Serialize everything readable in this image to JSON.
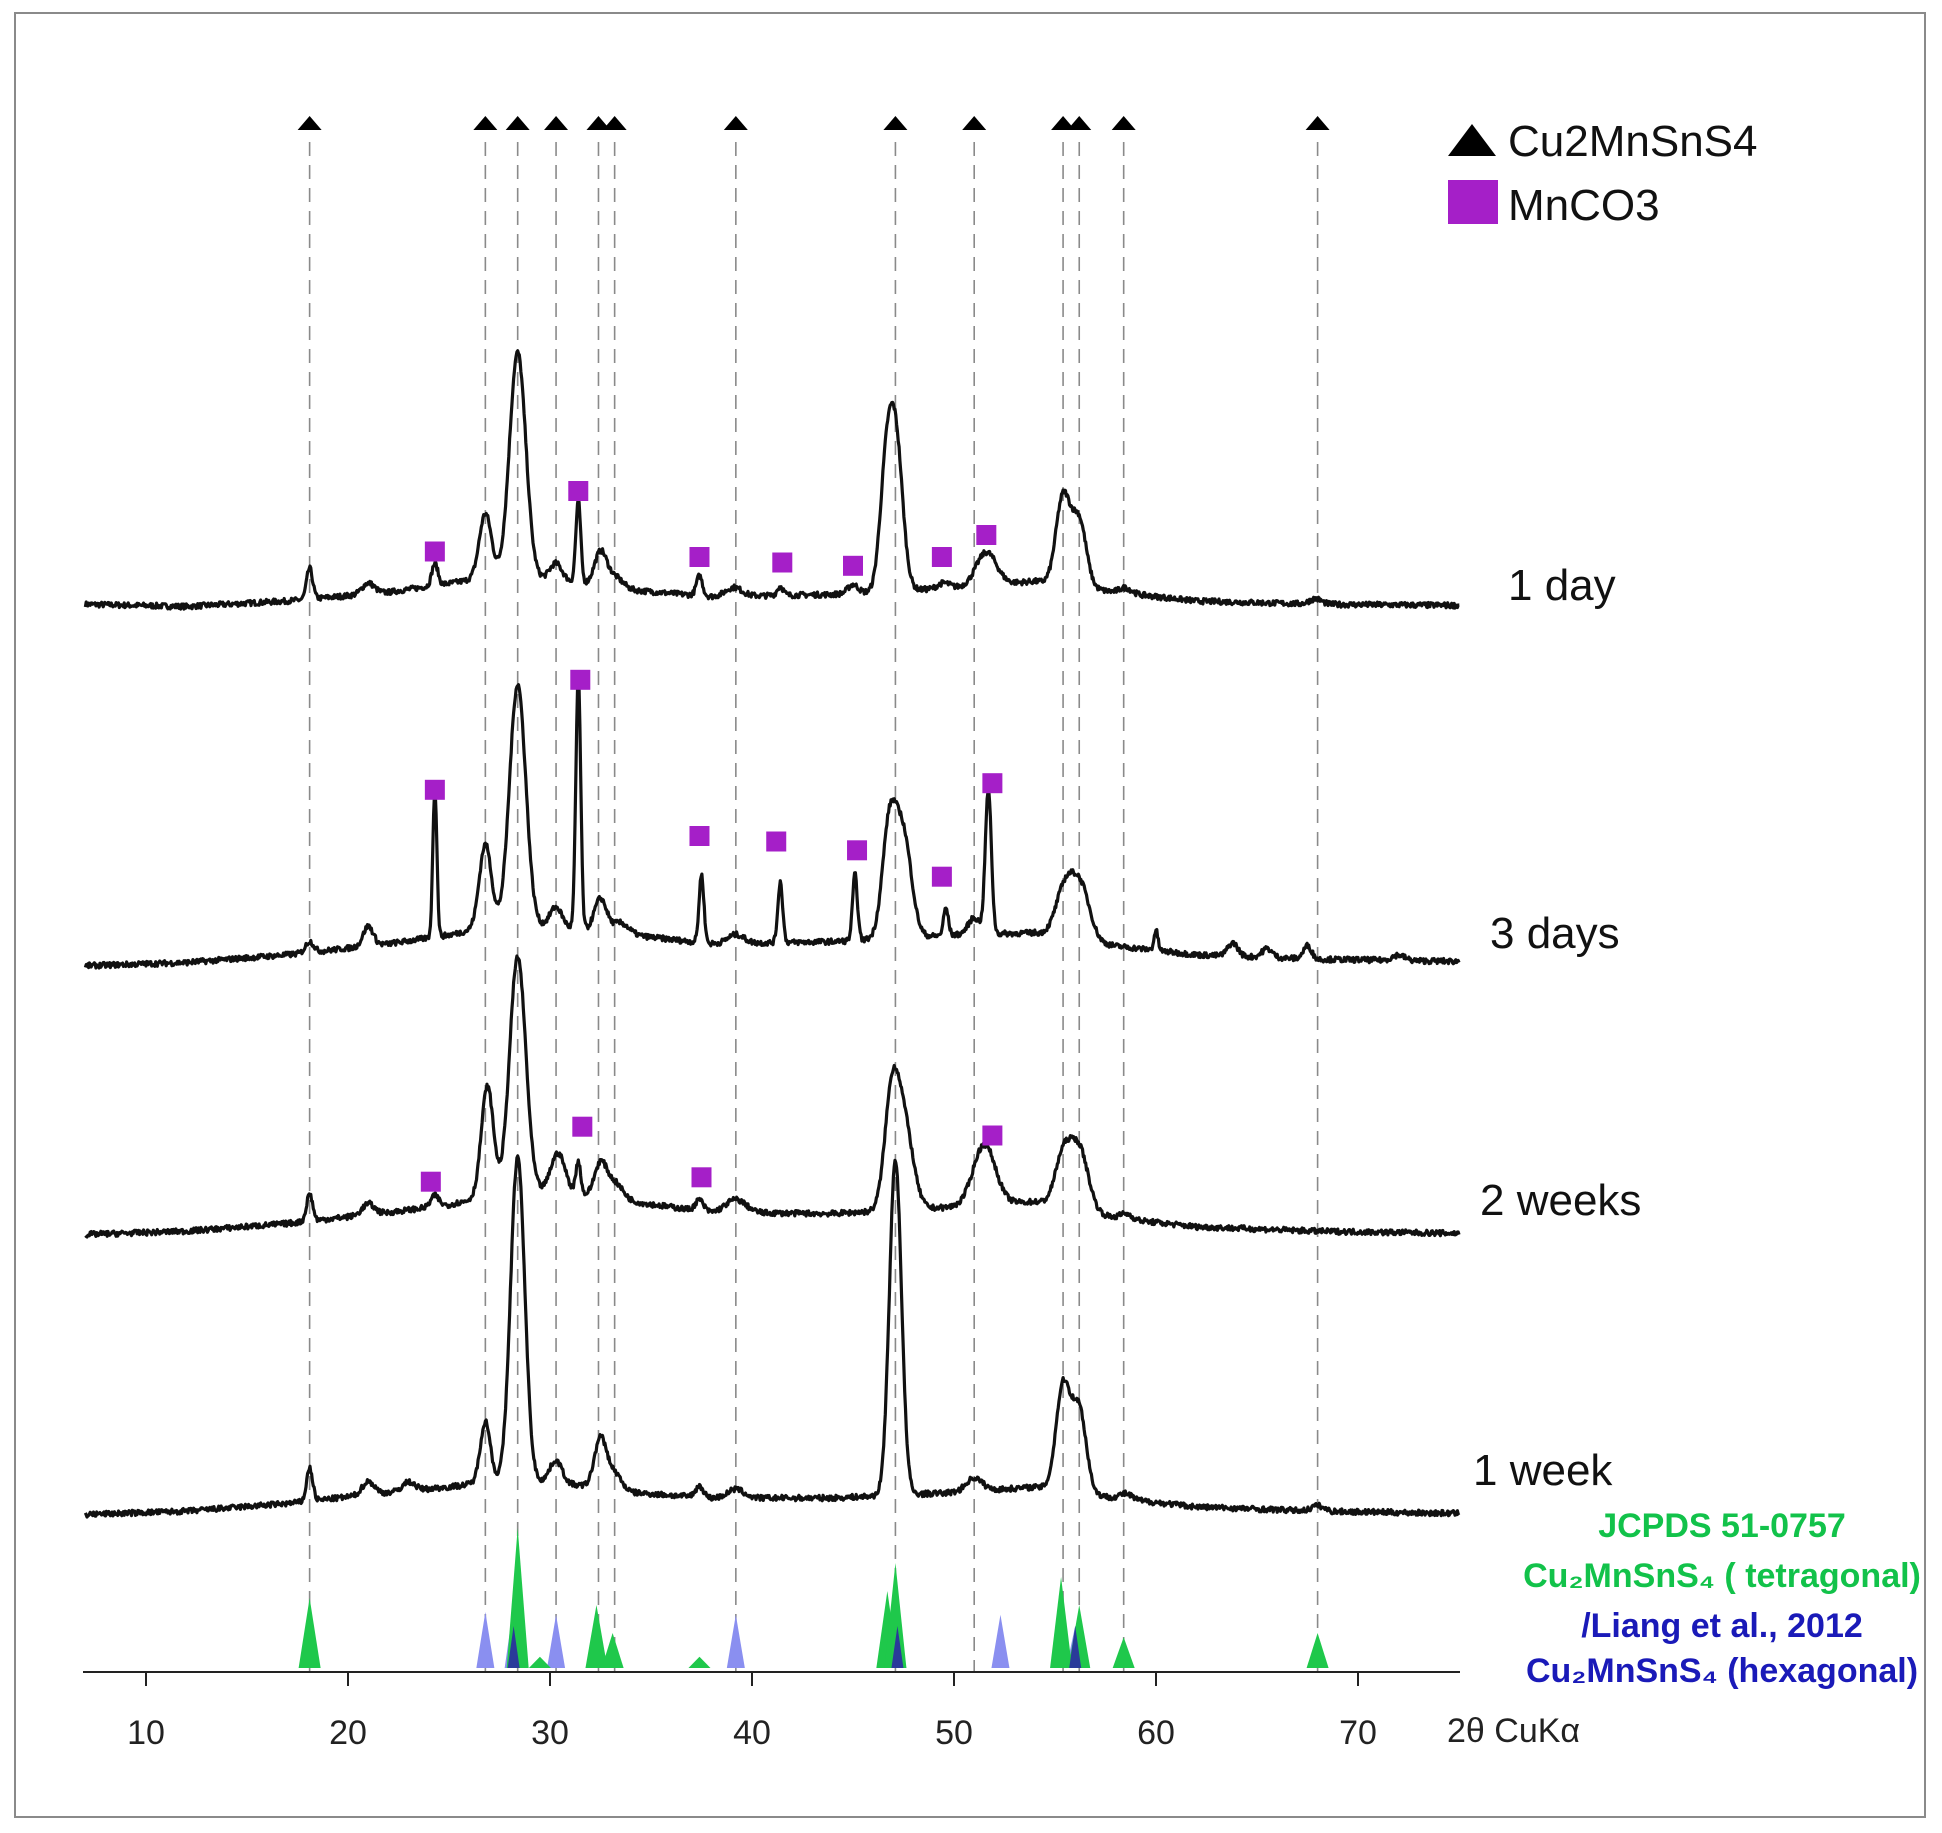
{
  "colors": {
    "trace": "#111111",
    "phase_marker": "#000000",
    "mnco3_marker": "#a51fc8",
    "guide_line": "#8a8a8a",
    "tetragonal_ref": "#1fc84b",
    "hexagonal_ref": "#8a8ff0",
    "hexagonal_ref_overlap": "#2a3a9a",
    "ref_text_green": "#12c24a",
    "ref_text_blue": "#1a1ab8"
  },
  "legend": {
    "triangle_label": "Cu2MnSnS4",
    "square_label": "MnCO3",
    "triangle_icon": "black-triangle",
    "square_icon": "purple-square"
  },
  "reference_text": {
    "line1": "JCPDS 51-0757",
    "line2": "Cu₂MnSnS₄ ( tetragonal)",
    "line3": "/Liang et al., 2012",
    "line4": "Cu₂MnSnS₄ (hexagonal)"
  },
  "chart_data": {
    "type": "line",
    "title": "",
    "xlabel": "2θ CuKα",
    "ylabel": "",
    "xlim": [
      7,
      75
    ],
    "xticks": [
      10,
      20,
      30,
      40,
      50,
      60,
      70
    ],
    "tick_labels": [
      "10",
      "20",
      "30",
      "40",
      "50",
      "60",
      "70"
    ],
    "grid": false,
    "legend_position": "top-right",
    "cu2mnsns4_peak_markers": [
      18.1,
      26.8,
      28.4,
      30.3,
      32.4,
      33.2,
      39.2,
      47.1,
      51.0,
      55.4,
      56.2,
      58.4,
      68.0
    ],
    "series": [
      {
        "name": "1 day",
        "baseline": [
          [
            7,
            0.07
          ],
          [
            12,
            0.05
          ],
          [
            17,
            0.1
          ],
          [
            22,
            0.18
          ],
          [
            25,
            0.26
          ],
          [
            27,
            0.32
          ],
          [
            30,
            0.3
          ],
          [
            34,
            0.2
          ],
          [
            38,
            0.14
          ],
          [
            44,
            0.16
          ],
          [
            50,
            0.22
          ],
          [
            54,
            0.28
          ],
          [
            58,
            0.18
          ],
          [
            62,
            0.1
          ],
          [
            68,
            0.07
          ],
          [
            75,
            0.06
          ]
        ],
        "peaks": [
          [
            18.1,
            0.28,
            0.15
          ],
          [
            21.0,
            0.1,
            0.3
          ],
          [
            24.3,
            0.2,
            0.15
          ],
          [
            26.8,
            0.58,
            0.3
          ],
          [
            28.4,
            2.05,
            0.4
          ],
          [
            30.3,
            0.15,
            0.3
          ],
          [
            31.4,
            0.75,
            0.12
          ],
          [
            32.5,
            0.3,
            0.3
          ],
          [
            33.2,
            0.1,
            0.4
          ],
          [
            37.4,
            0.18,
            0.15
          ],
          [
            39.1,
            0.08,
            0.4
          ],
          [
            41.4,
            0.08,
            0.15
          ],
          [
            45.0,
            0.08,
            0.25
          ],
          [
            46.6,
            0.85,
            0.3
          ],
          [
            47.1,
            1.4,
            0.35
          ],
          [
            49.5,
            0.05,
            0.3
          ],
          [
            51.6,
            0.3,
            0.5
          ],
          [
            55.4,
            0.8,
            0.35
          ],
          [
            56.2,
            0.6,
            0.35
          ],
          [
            58.5,
            0.05,
            0.3
          ],
          [
            67.9,
            0.05,
            0.3
          ]
        ],
        "mnco3_markers": [
          [
            24.3,
            0.55
          ],
          [
            31.4,
            1.1
          ],
          [
            37.4,
            0.5
          ],
          [
            41.5,
            0.45
          ],
          [
            45.0,
            0.42
          ],
          [
            49.4,
            0.5
          ],
          [
            51.6,
            0.7
          ]
        ]
      },
      {
        "name": "3 days",
        "baseline": [
          [
            7,
            0.02
          ],
          [
            12,
            0.05
          ],
          [
            17,
            0.12
          ],
          [
            22,
            0.22
          ],
          [
            25,
            0.3
          ],
          [
            27,
            0.38
          ],
          [
            30,
            0.38
          ],
          [
            34,
            0.3
          ],
          [
            38,
            0.22
          ],
          [
            44,
            0.24
          ],
          [
            50,
            0.3
          ],
          [
            54,
            0.32
          ],
          [
            58,
            0.2
          ],
          [
            62,
            0.12
          ],
          [
            68,
            0.08
          ],
          [
            75,
            0.06
          ]
        ],
        "peaks": [
          [
            18.1,
            0.1,
            0.2
          ],
          [
            21.0,
            0.18,
            0.25
          ],
          [
            24.3,
            1.35,
            0.1
          ],
          [
            26.8,
            0.75,
            0.3
          ],
          [
            28.4,
            2.2,
            0.4
          ],
          [
            30.3,
            0.18,
            0.3
          ],
          [
            31.4,
            2.3,
            0.12
          ],
          [
            32.5,
            0.3,
            0.3
          ],
          [
            33.5,
            0.1,
            0.4
          ],
          [
            37.5,
            0.62,
            0.12
          ],
          [
            39.2,
            0.08,
            0.4
          ],
          [
            41.4,
            0.55,
            0.12
          ],
          [
            45.1,
            0.6,
            0.12
          ],
          [
            46.8,
            1.0,
            0.35
          ],
          [
            47.5,
            0.9,
            0.4
          ],
          [
            49.6,
            0.25,
            0.12
          ],
          [
            51.0,
            0.15,
            0.3
          ],
          [
            51.7,
            1.3,
            0.15
          ],
          [
            55.5,
            0.45,
            0.45
          ],
          [
            56.3,
            0.45,
            0.45
          ],
          [
            60.0,
            0.18,
            0.1
          ],
          [
            63.8,
            0.12,
            0.25
          ],
          [
            65.5,
            0.08,
            0.25
          ],
          [
            67.5,
            0.12,
            0.2
          ],
          [
            72.0,
            0.05,
            0.3
          ]
        ],
        "mnco3_markers": [
          [
            24.3,
            1.62
          ],
          [
            31.5,
            2.62
          ],
          [
            37.4,
            1.2
          ],
          [
            41.2,
            1.15
          ],
          [
            45.2,
            1.07
          ],
          [
            49.4,
            0.83
          ],
          [
            51.9,
            1.68
          ]
        ]
      },
      {
        "name": "2 weeks",
        "baseline": [
          [
            7,
            0.05
          ],
          [
            12,
            0.08
          ],
          [
            17,
            0.15
          ],
          [
            22,
            0.25
          ],
          [
            25,
            0.32
          ],
          [
            27,
            0.4
          ],
          [
            30,
            0.45
          ],
          [
            34,
            0.35
          ],
          [
            38,
            0.25
          ],
          [
            44,
            0.24
          ],
          [
            50,
            0.3
          ],
          [
            54,
            0.35
          ],
          [
            58,
            0.2
          ],
          [
            62,
            0.12
          ],
          [
            68,
            0.08
          ],
          [
            75,
            0.06
          ]
        ],
        "peaks": [
          [
            18.1,
            0.25,
            0.15
          ],
          [
            21.0,
            0.1,
            0.3
          ],
          [
            24.3,
            0.1,
            0.2
          ],
          [
            26.9,
            1.0,
            0.3
          ],
          [
            28.4,
            2.15,
            0.4
          ],
          [
            30.4,
            0.35,
            0.35
          ],
          [
            31.4,
            0.3,
            0.12
          ],
          [
            32.5,
            0.3,
            0.3
          ],
          [
            33.2,
            0.15,
            0.4
          ],
          [
            37.4,
            0.1,
            0.2
          ],
          [
            39.2,
            0.12,
            0.5
          ],
          [
            46.9,
            0.9,
            0.35
          ],
          [
            47.5,
            0.8,
            0.45
          ],
          [
            51.5,
            0.55,
            0.55
          ],
          [
            55.4,
            0.45,
            0.4
          ],
          [
            56.2,
            0.55,
            0.45
          ],
          [
            58.5,
            0.05,
            0.3
          ]
        ],
        "mnco3_markers": [
          [
            24.1,
            0.53
          ],
          [
            31.6,
            1.03
          ],
          [
            37.5,
            0.57
          ],
          [
            51.9,
            0.95
          ]
        ]
      },
      {
        "name": "1 week",
        "baseline": [
          [
            7,
            0.05
          ],
          [
            12,
            0.08
          ],
          [
            17,
            0.15
          ],
          [
            22,
            0.25
          ],
          [
            25,
            0.3
          ],
          [
            27,
            0.35
          ],
          [
            30,
            0.35
          ],
          [
            34,
            0.25
          ],
          [
            38,
            0.2
          ],
          [
            44,
            0.2
          ],
          [
            50,
            0.25
          ],
          [
            54,
            0.3
          ],
          [
            58,
            0.2
          ],
          [
            62,
            0.12
          ],
          [
            68,
            0.08
          ],
          [
            75,
            0.06
          ]
        ],
        "peaks": [
          [
            18.1,
            0.3,
            0.15
          ],
          [
            21.0,
            0.12,
            0.3
          ],
          [
            23.0,
            0.08,
            0.3
          ],
          [
            26.8,
            0.55,
            0.25
          ],
          [
            28.4,
            2.95,
            0.35
          ],
          [
            30.3,
            0.2,
            0.3
          ],
          [
            32.5,
            0.45,
            0.3
          ],
          [
            33.2,
            0.15,
            0.35
          ],
          [
            37.4,
            0.1,
            0.2
          ],
          [
            39.2,
            0.08,
            0.4
          ],
          [
            47.1,
            3.05,
            0.3
          ],
          [
            51.0,
            0.12,
            0.4
          ],
          [
            55.4,
            0.95,
            0.35
          ],
          [
            56.2,
            0.75,
            0.35
          ],
          [
            58.5,
            0.05,
            0.3
          ],
          [
            68.0,
            0.05,
            0.3
          ]
        ],
        "mnco3_markers": []
      }
    ],
    "reference_patterns": [
      {
        "name": "Cu2MnSnS4 (tetragonal)",
        "peaks": [
          [
            18.1,
            0.5
          ],
          [
            28.4,
            1.0
          ],
          [
            29.5,
            0.08
          ],
          [
            32.3,
            0.45
          ],
          [
            33.1,
            0.25
          ],
          [
            37.4,
            0.08
          ],
          [
            46.7,
            0.55
          ],
          [
            47.1,
            0.75
          ],
          [
            55.3,
            0.65
          ],
          [
            56.2,
            0.45
          ],
          [
            58.4,
            0.22
          ],
          [
            68.0,
            0.25
          ]
        ]
      },
      {
        "name": "Cu2MnSnS4 (hexagonal)",
        "peaks": [
          [
            26.8,
            0.4
          ],
          [
            28.2,
            0.45
          ],
          [
            30.3,
            0.38
          ],
          [
            39.2,
            0.38
          ],
          [
            47.2,
            0.3
          ],
          [
            52.3,
            0.38
          ],
          [
            56.0,
            0.3
          ]
        ]
      }
    ]
  }
}
